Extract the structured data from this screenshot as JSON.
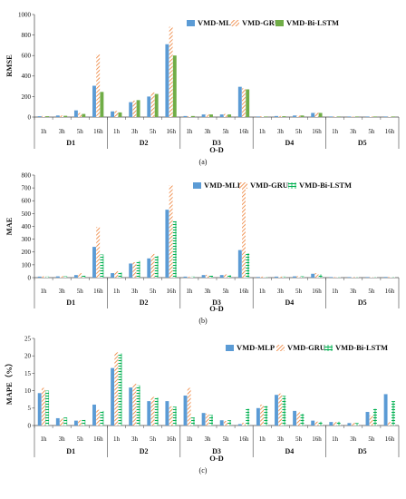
{
  "colors": {
    "mlp": "#5b9bd5",
    "gru": "#ed7d31",
    "bilstm": "#70ad47"
  },
  "chart_data": [
    {
      "type": "bar",
      "caption": "(a)",
      "xlabel": "O-D",
      "ylabel": "RMSE",
      "ylim": [
        0,
        1000
      ],
      "yticks": [
        0,
        200,
        400,
        600,
        800,
        1000
      ],
      "groups": [
        "D1",
        "D2",
        "D3",
        "D4",
        "D5"
      ],
      "horizons": [
        "1h",
        "3h",
        "5h",
        "16h"
      ],
      "legend_position": "top-right",
      "grid": false,
      "series": [
        {
          "name": "VMD-MLP",
          "style": "solid",
          "color": "#5b9bd5",
          "values": [
            8,
            15,
            65,
            305,
            55,
            145,
            200,
            710,
            10,
            25,
            25,
            295,
            5,
            10,
            15,
            40,
            2,
            2,
            3,
            5
          ]
        },
        {
          "name": "VMD-GRU",
          "style": "hatch",
          "color": "#ed7d31",
          "values": [
            10,
            15,
            40,
            610,
            60,
            160,
            240,
            880,
            8,
            28,
            30,
            280,
            8,
            10,
            18,
            45,
            2,
            2,
            3,
            5
          ]
        },
        {
          "name": "VMD-Bi-LSTM",
          "style": "solid",
          "color": "#70ad47",
          "values": [
            8,
            12,
            30,
            245,
            45,
            165,
            225,
            600,
            10,
            25,
            25,
            270,
            5,
            8,
            15,
            40,
            2,
            2,
            3,
            5
          ]
        }
      ]
    },
    {
      "type": "bar",
      "caption": "(b)",
      "xlabel": "O-D",
      "ylabel": "MAE",
      "ylim": [
        0,
        800
      ],
      "yticks": [
        0,
        100,
        200,
        300,
        400,
        500,
        600,
        700,
        800
      ],
      "groups": [
        "D1",
        "D2",
        "D3",
        "D4",
        "D5"
      ],
      "horizons": [
        "1h",
        "3h",
        "5h",
        "16h"
      ],
      "legend_position": "top-right",
      "grid": false,
      "series": [
        {
          "name": "VMD-MLP",
          "style": "solid",
          "color": "#5b9bd5",
          "values": [
            8,
            10,
            20,
            240,
            35,
            110,
            150,
            530,
            8,
            20,
            20,
            215,
            5,
            8,
            10,
            30,
            2,
            2,
            3,
            5
          ]
        },
        {
          "name": "VMD-GRU",
          "style": "hatch",
          "color": "#ed7d31",
          "values": [
            10,
            12,
            35,
            395,
            50,
            120,
            185,
            720,
            8,
            22,
            25,
            740,
            8,
            8,
            12,
            35,
            2,
            2,
            3,
            5
          ]
        },
        {
          "name": "VMD-Bi-LSTM",
          "style": "dash",
          "color": "#00b050",
          "values": [
            8,
            10,
            15,
            180,
            40,
            130,
            170,
            440,
            8,
            15,
            20,
            190,
            5,
            8,
            10,
            25,
            2,
            2,
            3,
            5
          ]
        }
      ]
    },
    {
      "type": "bar",
      "caption": "(c)",
      "xlabel": "O-D",
      "ylabel": "MAPE（%）",
      "ylim": [
        0,
        25
      ],
      "yticks": [
        0,
        5,
        10,
        15,
        20,
        25
      ],
      "groups": [
        "D1",
        "D2",
        "D3",
        "D4",
        "D5"
      ],
      "horizons": [
        "1h",
        "3h",
        "5h",
        "16h"
      ],
      "legend_position": "top-right",
      "grid": false,
      "series": [
        {
          "name": "VMD-MLP",
          "style": "solid",
          "color": "#5b9bd5",
          "values": [
            9.3,
            2.1,
            1.4,
            6.0,
            16.5,
            10.9,
            7.0,
            7.0,
            8.6,
            3.6,
            1.5,
            0.4,
            5.0,
            8.8,
            4.2,
            1.4,
            1.0,
            0.7,
            3.9,
            9.0
          ]
        },
        {
          "name": "VMD-GRU",
          "style": "hatch",
          "color": "#ed7d31",
          "values": [
            10.8,
            2.0,
            1.5,
            4.5,
            21.0,
            12.0,
            8.2,
            5.5,
            10.8,
            3.4,
            1.3,
            0.8,
            6.0,
            9.2,
            3.8,
            1.1,
            1.0,
            0.8,
            2.9,
            1.0
          ]
        },
        {
          "name": "VMD-Bi-LSTM",
          "style": "dash",
          "color": "#00b050",
          "values": [
            10.0,
            2.3,
            1.6,
            4.2,
            20.7,
            11.5,
            8.0,
            5.4,
            2.3,
            3.0,
            1.5,
            4.8,
            5.6,
            8.5,
            3.4,
            1.1,
            1.1,
            0.7,
            4.8,
            7.0
          ]
        }
      ]
    }
  ]
}
